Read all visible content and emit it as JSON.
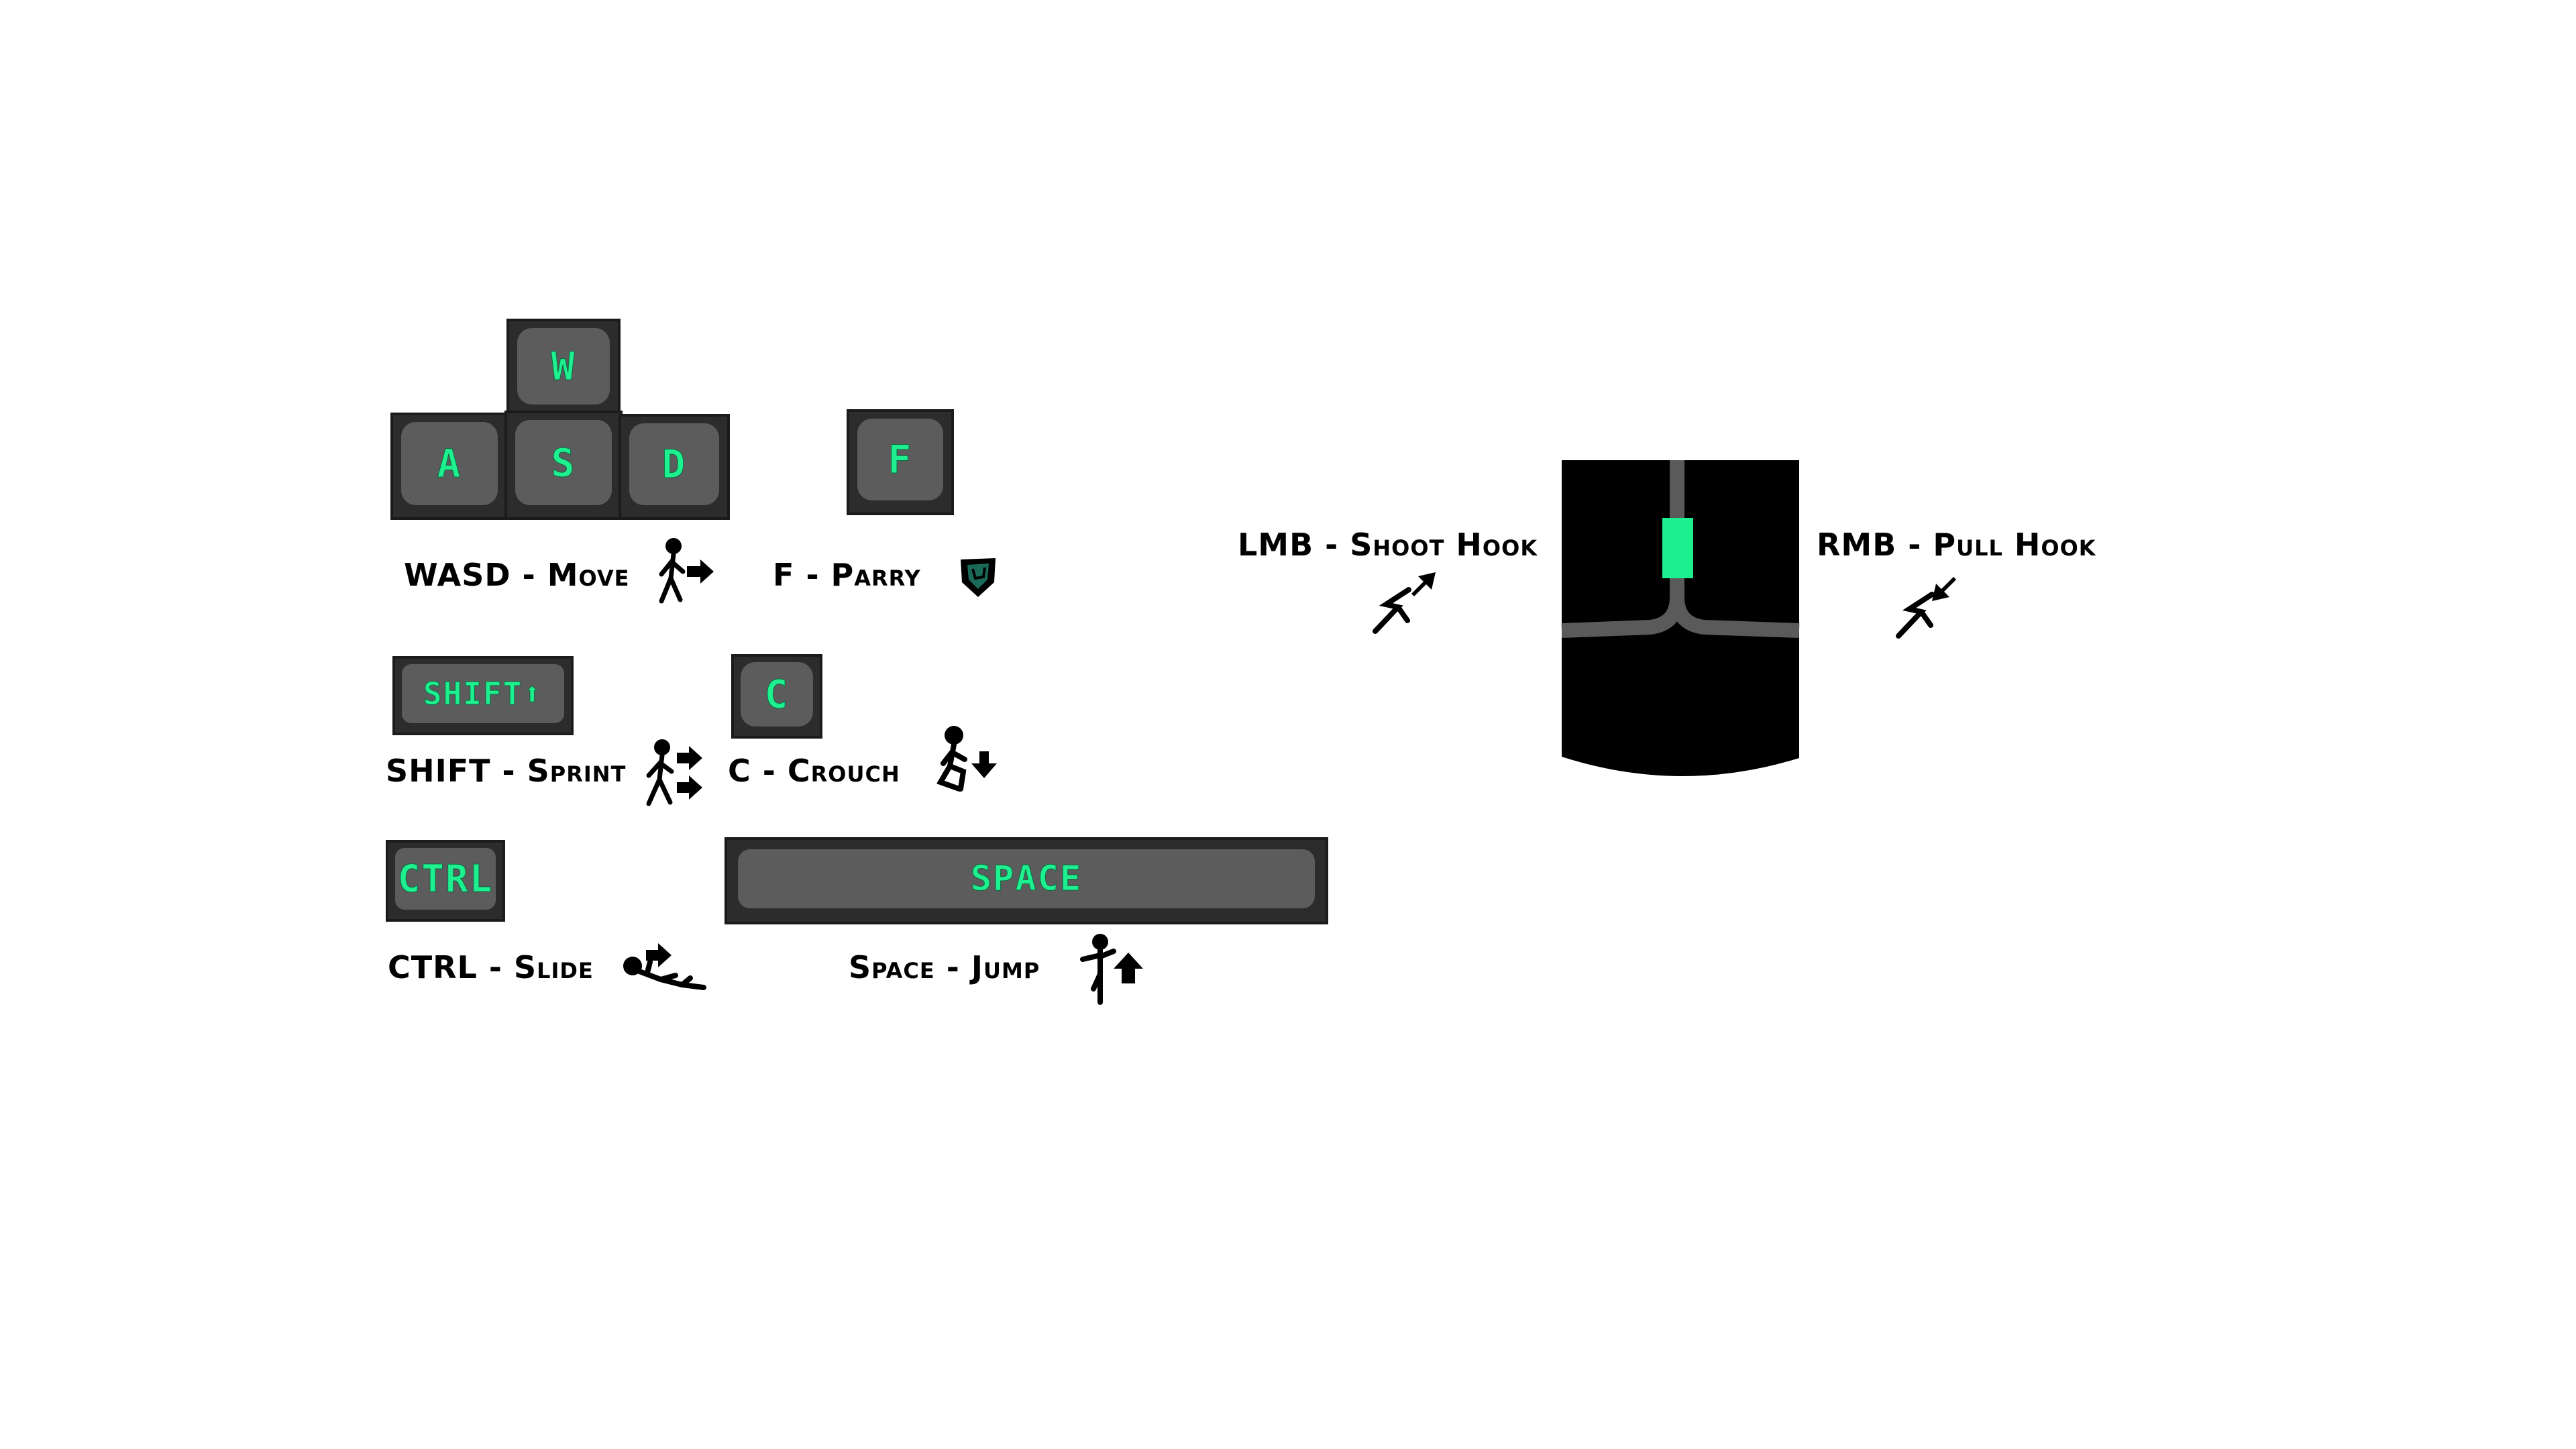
{
  "keys": {
    "w": "W",
    "a": "A",
    "s": "S",
    "d": "D",
    "f": "F",
    "shift": "SHIFT⬆",
    "c": "C",
    "ctrl": "CTRL",
    "space": "SPACE"
  },
  "labels": {
    "move": "WASD - Move",
    "parry": "F - Parry",
    "sprint": "SHIFT - Sprint",
    "crouch": "C - Crouch",
    "slide": "CTRL - Slide",
    "jump": "Space - Jump",
    "shoot_hook": "LMB - Shoot Hook",
    "pull_hook": "RMB - Pull Hook"
  },
  "icons": {
    "move": "walk-arrow-icon",
    "parry": "shield-icon",
    "sprint": "run-arrows-icon",
    "crouch": "crouch-arrow-icon",
    "slide": "slide-icon",
    "jump": "jump-arrow-icon",
    "shoot_hook": "hook-shoot-icon",
    "pull_hook": "hook-pull-icon"
  },
  "colors": {
    "key_text": "#1ef08f",
    "key_face": "#5c5c5c",
    "key_base": "#2c2c2c",
    "mouse_body": "#000000",
    "mouse_line": "#5a5a5a",
    "mouse_wheel": "#1ef08f"
  }
}
